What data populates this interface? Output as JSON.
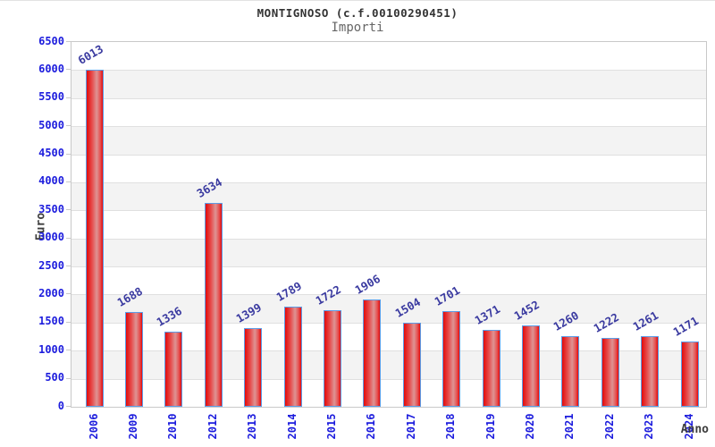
{
  "chart_data": {
    "type": "bar",
    "title": "MONTIGNOSO (c.f.00100290451)",
    "subtitle": "Importi",
    "xlabel": "Anno",
    "ylabel": "Euro",
    "categories": [
      "2006",
      "2009",
      "2010",
      "2012",
      "2013",
      "2014",
      "2015",
      "2016",
      "2017",
      "2018",
      "2019",
      "2020",
      "2021",
      "2022",
      "2023",
      "2024"
    ],
    "values": [
      6013,
      1688,
      1336,
      3634,
      1399,
      1789,
      1722,
      1906,
      1504,
      1701,
      1371,
      1452,
      1260,
      1222,
      1261,
      1171
    ],
    "ylim": [
      0,
      6500
    ],
    "ytick_step": 500,
    "ytick_labels": [
      "0",
      "500",
      "1000",
      "1500",
      "2000",
      "2500",
      "3000",
      "3500",
      "4000",
      "4500",
      "5000",
      "5500",
      "6000",
      "6500"
    ],
    "grid": "horizontal-bands",
    "legend": "none",
    "colors": {
      "bar_edge_red": "#e30b0b",
      "bar_mid_red": "#e65050",
      "bar_highlight": "#de9494",
      "bar_border": "#5c9ce6",
      "tick_label_blue": "#1c1cdd",
      "value_label_navy": "#3a3aa0",
      "title_color": "#333333",
      "subtitle_color": "#666666",
      "axis_title_color": "#3d3d3d",
      "band_gray": "#f3f3f3",
      "gridline_gray": "#e0e0e0",
      "frame_gray": "#c9c9c9"
    }
  }
}
